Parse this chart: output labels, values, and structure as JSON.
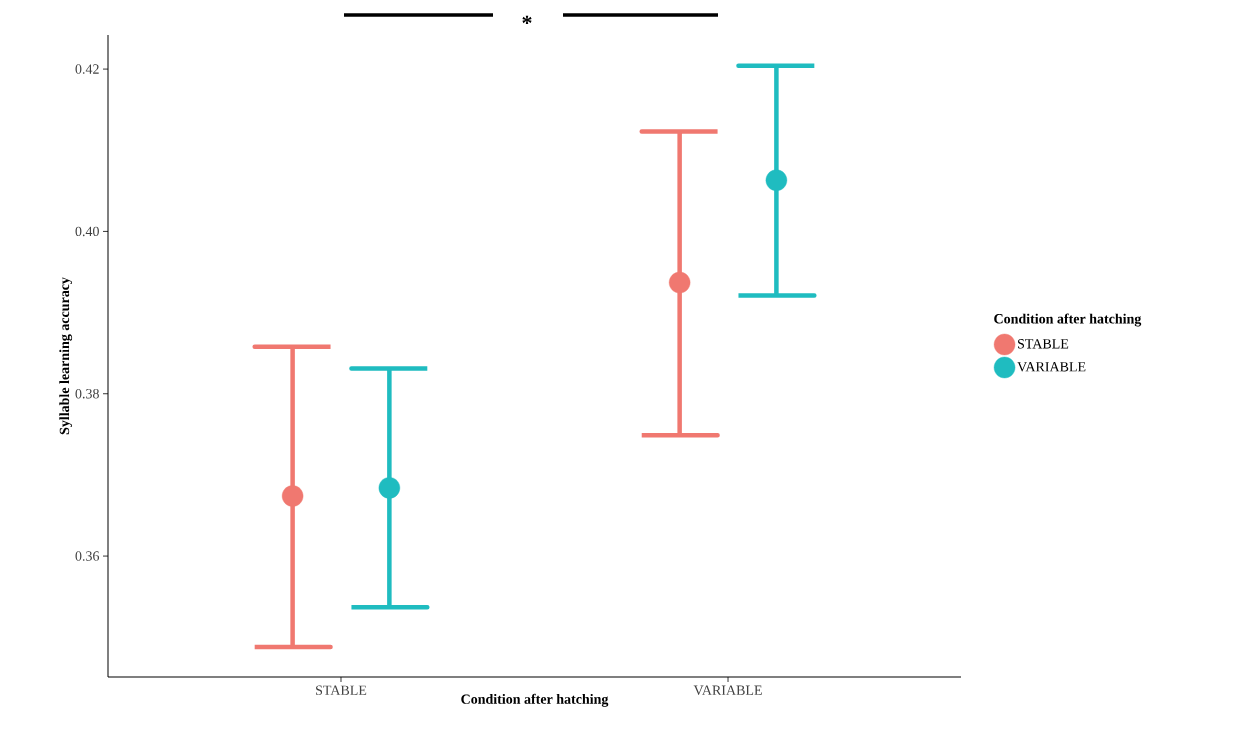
{
  "chart_data": {
    "type": "scatter",
    "xlabel": "Condition after hatching",
    "ylabel": "Syllable learning accuracy",
    "legend_title": "Condition after hatching",
    "categories": [
      "STABLE",
      "VARIABLE"
    ],
    "series": [
      {
        "name": "STABLE",
        "color": "#f07870",
        "values": [
          0.3674,
          0.3937
        ],
        "errors": [
          [
            0.3488,
            0.3858
          ],
          [
            0.3749,
            0.4123
          ]
        ]
      },
      {
        "name": "VARIABLE",
        "color": "#1fbcc0",
        "values": [
          0.3684,
          0.4063
        ],
        "errors": [
          [
            0.3537,
            0.3831
          ],
          [
            0.3921,
            0.4204
          ]
        ]
      }
    ],
    "ylim": [
      0.3451,
      0.4242
    ],
    "yticks": [
      0.36,
      0.38,
      {
        "value": 0.4,
        "label": "0.40"
      },
      0.42
    ],
    "marker": "circle",
    "legend": "right",
    "annotations": [
      "*"
    ]
  }
}
